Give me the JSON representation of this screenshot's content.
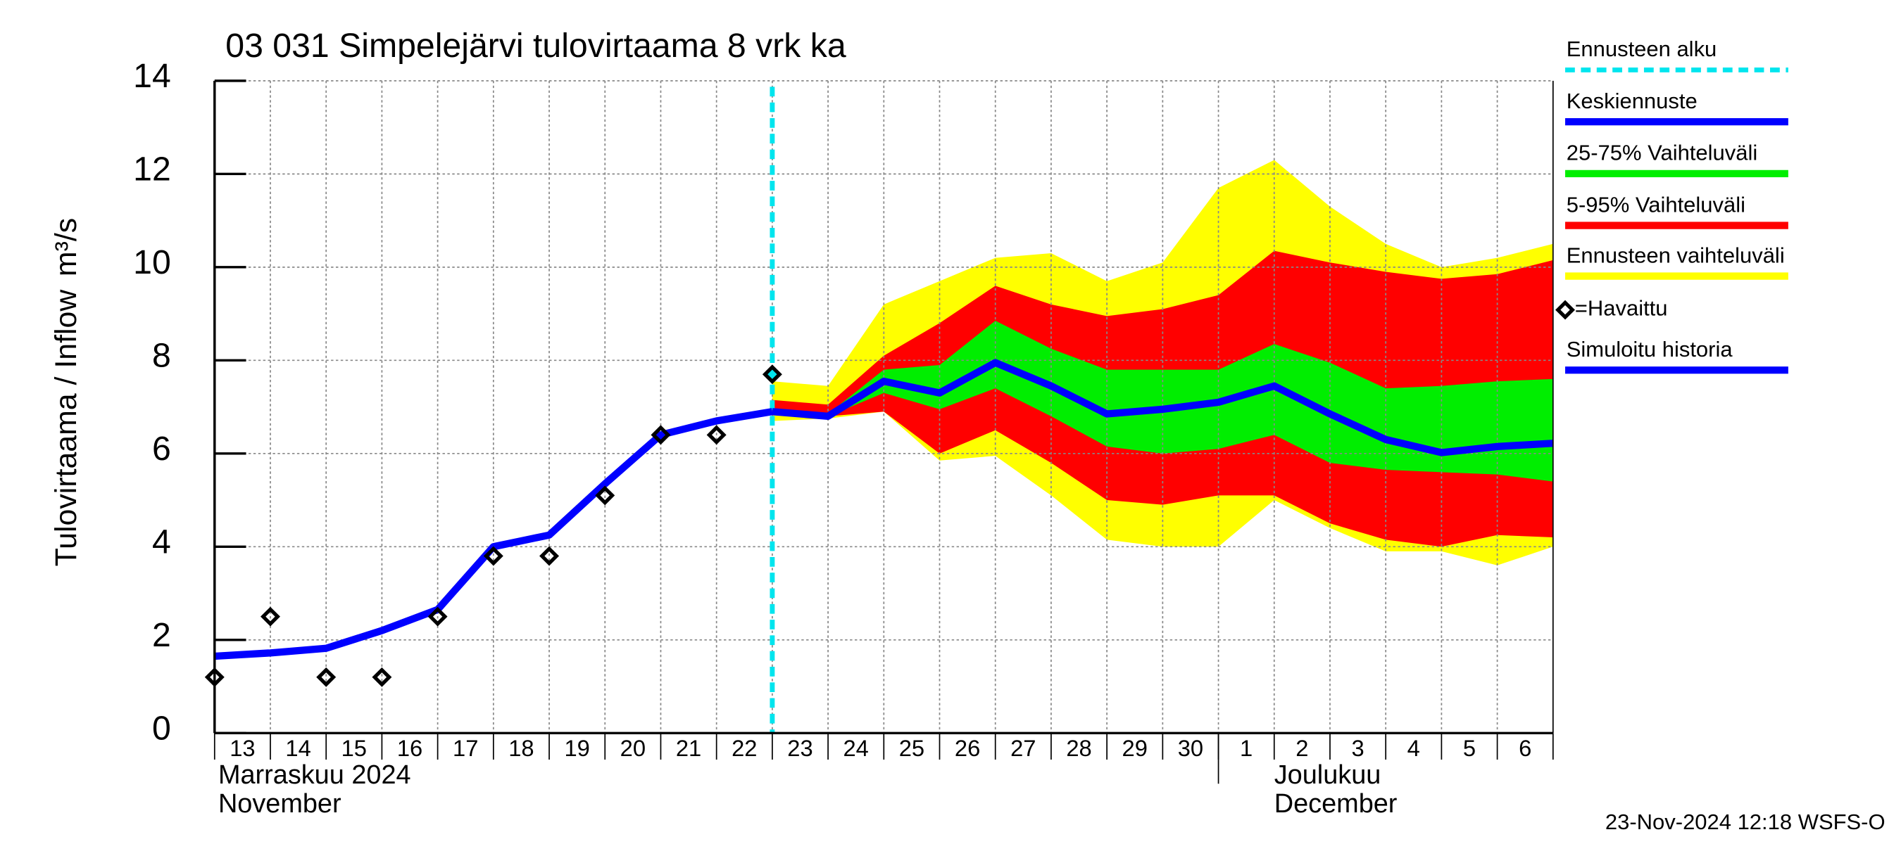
{
  "chart_data": {
    "type": "line",
    "title": "03 031 Simpelejärvi tulovirtaama 8 vrk ka",
    "ylabel": "Tulovirtaama / Inflow",
    "yunit": "m³/s",
    "timestamp": "23-Nov-2024 12:18 WSFS-O",
    "categories": [
      "13",
      "14",
      "15",
      "16",
      "17",
      "18",
      "19",
      "20",
      "21",
      "22",
      "23",
      "24",
      "25",
      "26",
      "27",
      "28",
      "29",
      "30",
      "1",
      "2",
      "3",
      "4",
      "5",
      "6",
      null
    ],
    "months": [
      {
        "label": "Marraskuu 2024",
        "label_en": "November",
        "category": "13"
      },
      {
        "label": "Joulukuu",
        "label_en": "December",
        "category": "1"
      }
    ],
    "ylim": [
      0,
      14
    ],
    "yticks": [
      0,
      2,
      4,
      6,
      8,
      10,
      12,
      14
    ],
    "grid": true,
    "forecast_start": {
      "name": "Ennusteen alku",
      "color": "#00e5ee",
      "category": "23"
    },
    "bands": [
      {
        "name": "Ennusteen vaihteluväli",
        "color": "#ffff00",
        "low": [
          null,
          null,
          null,
          null,
          null,
          null,
          null,
          null,
          null,
          null,
          6.7,
          6.75,
          6.9,
          5.85,
          5.95,
          5.1,
          4.15,
          4.0,
          4.0,
          5.0,
          4.4,
          3.9,
          3.9,
          3.6,
          4.0
        ],
        "high": [
          null,
          null,
          null,
          null,
          null,
          null,
          null,
          null,
          null,
          null,
          7.55,
          7.45,
          9.2,
          9.7,
          10.2,
          10.3,
          9.7,
          10.1,
          11.7,
          12.3,
          11.3,
          10.5,
          10.0,
          10.2,
          10.5
        ]
      },
      {
        "name": "5-95% Vaihteluväli",
        "color": "#ff0000",
        "low": [
          null,
          null,
          null,
          null,
          null,
          null,
          null,
          null,
          null,
          null,
          6.85,
          6.8,
          6.9,
          6.0,
          6.5,
          5.8,
          5.0,
          4.9,
          5.1,
          5.1,
          4.5,
          4.15,
          4.0,
          4.25,
          4.2
        ],
        "high": [
          null,
          null,
          null,
          null,
          null,
          null,
          null,
          null,
          null,
          null,
          7.15,
          7.05,
          8.1,
          8.8,
          9.6,
          9.2,
          8.95,
          9.1,
          9.4,
          10.35,
          10.1,
          9.9,
          9.75,
          9.85,
          10.15
        ]
      },
      {
        "name": "25-75% Vaihteluväli",
        "color": "#00ee00",
        "low": [
          null,
          null,
          null,
          null,
          null,
          null,
          null,
          null,
          null,
          null,
          6.9,
          6.8,
          7.3,
          6.95,
          7.4,
          6.8,
          6.15,
          6.0,
          6.1,
          6.4,
          5.8,
          5.65,
          5.6,
          5.55,
          5.4
        ],
        "high": [
          null,
          null,
          null,
          null,
          null,
          null,
          null,
          null,
          null,
          null,
          6.95,
          6.85,
          7.8,
          7.9,
          8.85,
          8.25,
          7.8,
          7.8,
          7.8,
          8.35,
          7.95,
          7.4,
          7.45,
          7.55,
          7.6
        ]
      }
    ],
    "series": [
      {
        "name": "Simuloitu historia",
        "color": "#0000ff",
        "values": [
          1.65,
          1.72,
          1.82,
          2.2,
          2.65,
          4.0,
          4.25,
          5.35,
          6.4,
          6.7,
          6.9,
          null,
          null,
          null,
          null,
          null,
          null,
          null,
          null,
          null,
          null,
          null,
          null,
          null,
          null
        ]
      },
      {
        "name": "Keskiennuste",
        "color": "#0000ff",
        "values": [
          null,
          null,
          null,
          null,
          null,
          null,
          null,
          null,
          null,
          null,
          6.9,
          6.8,
          7.55,
          7.3,
          7.95,
          7.45,
          6.85,
          6.95,
          7.1,
          7.45,
          6.85,
          6.3,
          6.02,
          6.15,
          6.22
        ]
      },
      {
        "name": "=Havaittu",
        "color": "#000000",
        "marker": "diamond",
        "values": [
          1.2,
          2.5,
          1.2,
          1.2,
          2.5,
          3.8,
          3.8,
          5.1,
          6.4,
          6.4,
          7.7,
          null,
          null,
          null,
          null,
          null,
          null,
          null,
          null,
          null,
          null,
          null,
          null,
          null,
          null
        ]
      }
    ]
  }
}
